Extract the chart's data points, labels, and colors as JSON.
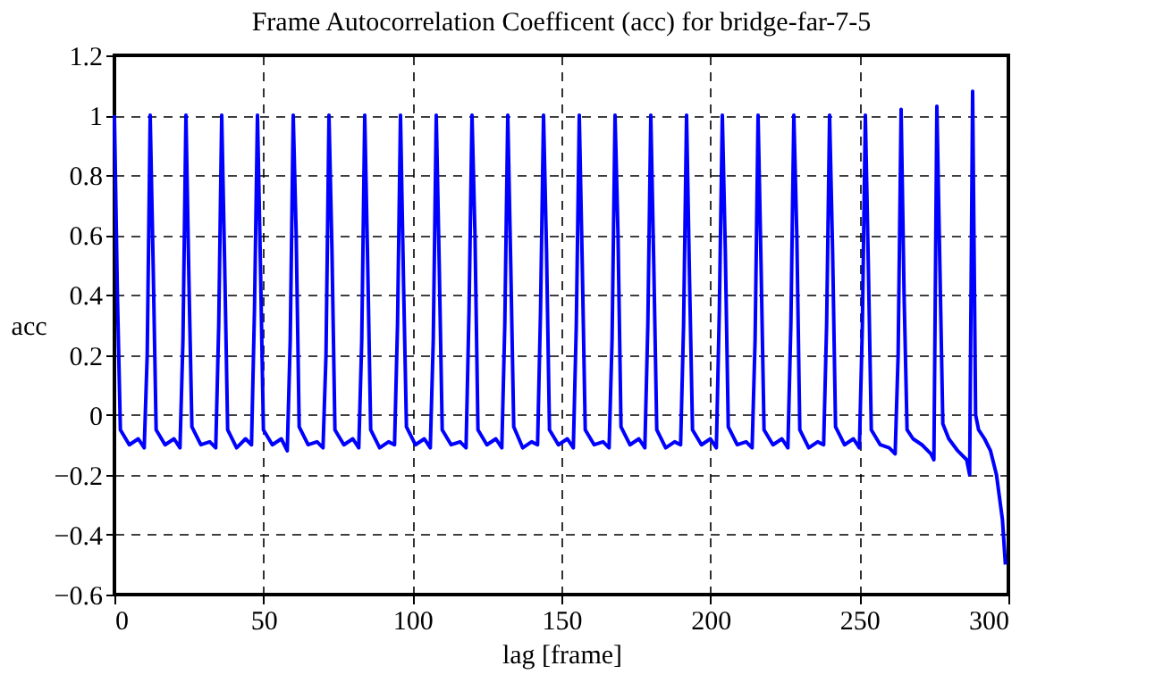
{
  "chart_data": {
    "type": "line",
    "title": "Frame Autocorrelation Coefficent (acc) for bridge-far-7-5",
    "xlabel": "lag [frame]",
    "ylabel": "acc",
    "xlim": [
      0,
      300
    ],
    "xticks": [
      0,
      50,
      100,
      150,
      200,
      250,
      300
    ],
    "ylim": [
      -0.6,
      1.2
    ],
    "yticks": [
      -0.6,
      -0.4,
      -0.2,
      0,
      0.2,
      0.4,
      0.6,
      0.8,
      1,
      1.2
    ],
    "grid": true,
    "marker": "none",
    "line_style": "solid",
    "series": [
      {
        "color": "#0000ff",
        "x": [
          0,
          1,
          2,
          5,
          8,
          10,
          11,
          12,
          13,
          14,
          17,
          20,
          22,
          23,
          24,
          25,
          26,
          29,
          32,
          34,
          35,
          36,
          37,
          38,
          41,
          44,
          46,
          47,
          48,
          49,
          50,
          53,
          56,
          58,
          59,
          60,
          61,
          62,
          65,
          68,
          70,
          71,
          72,
          73,
          74,
          77,
          80,
          82,
          83,
          84,
          85,
          86,
          89,
          92,
          94,
          95,
          96,
          97,
          98,
          101,
          104,
          106,
          107,
          108,
          109,
          110,
          113,
          116,
          118,
          119,
          120,
          121,
          122,
          125,
          128,
          130,
          131,
          132,
          133,
          134,
          137,
          140,
          142,
          143,
          144,
          145,
          146,
          149,
          152,
          154,
          155,
          156,
          157,
          158,
          161,
          164,
          166,
          167,
          168,
          169,
          170,
          173,
          176,
          178,
          179,
          180,
          181,
          182,
          185,
          188,
          190,
          191,
          192,
          193,
          194,
          197,
          200,
          202,
          203,
          204,
          205,
          206,
          209,
          212,
          214,
          215,
          216,
          217,
          218,
          221,
          224,
          226,
          227,
          228,
          229,
          230,
          233,
          236,
          238,
          239,
          240,
          241,
          242,
          245,
          248,
          250,
          251,
          252,
          253,
          254,
          257,
          260,
          262,
          263,
          264,
          265,
          266,
          268,
          271,
          274,
          275,
          276,
          277,
          278,
          280,
          283,
          286,
          287,
          288,
          289,
          290,
          292,
          294,
          296,
          298,
          299
        ],
        "values": [
          1.0,
          0.4,
          -0.05,
          -0.1,
          -0.08,
          -0.11,
          0.2,
          1.0,
          0.5,
          -0.05,
          -0.1,
          -0.08,
          -0.11,
          0.25,
          1.0,
          0.45,
          -0.04,
          -0.1,
          -0.09,
          -0.11,
          0.3,
          1.0,
          0.5,
          -0.05,
          -0.11,
          -0.08,
          -0.1,
          0.35,
          1.0,
          0.5,
          -0.05,
          -0.1,
          -0.08,
          -0.12,
          0.25,
          1.0,
          0.6,
          -0.04,
          -0.1,
          -0.09,
          -0.11,
          0.2,
          1.0,
          0.55,
          -0.05,
          -0.1,
          -0.08,
          -0.11,
          0.25,
          1.0,
          0.5,
          -0.05,
          -0.11,
          -0.09,
          -0.1,
          0.3,
          1.0,
          0.45,
          -0.04,
          -0.1,
          -0.08,
          -0.11,
          0.25,
          1.0,
          0.5,
          -0.05,
          -0.1,
          -0.09,
          -0.11,
          0.35,
          1.0,
          0.6,
          -0.05,
          -0.1,
          -0.08,
          -0.11,
          0.3,
          1.0,
          0.5,
          -0.04,
          -0.11,
          -0.09,
          -0.1,
          0.35,
          1.0,
          0.55,
          -0.05,
          -0.1,
          -0.08,
          -0.11,
          0.3,
          1.0,
          0.5,
          -0.05,
          -0.1,
          -0.09,
          -0.11,
          0.25,
          1.0,
          0.6,
          -0.04,
          -0.1,
          -0.08,
          -0.11,
          0.3,
          1.0,
          0.5,
          -0.05,
          -0.11,
          -0.09,
          -0.1,
          0.3,
          1.0,
          0.45,
          -0.05,
          -0.1,
          -0.08,
          -0.11,
          0.35,
          1.0,
          0.55,
          -0.04,
          -0.1,
          -0.09,
          -0.11,
          0.25,
          1.0,
          0.5,
          -0.05,
          -0.1,
          -0.08,
          -0.11,
          0.3,
          1.0,
          0.6,
          -0.05,
          -0.11,
          -0.09,
          -0.1,
          0.3,
          1.0,
          0.55,
          -0.04,
          -0.1,
          -0.08,
          -0.11,
          0.3,
          1.0,
          0.5,
          -0.05,
          -0.1,
          -0.11,
          -0.13,
          0.2,
          1.02,
          0.4,
          -0.05,
          -0.08,
          -0.1,
          -0.13,
          -0.15,
          1.03,
          0.5,
          -0.03,
          -0.08,
          -0.12,
          -0.15,
          -0.2,
          1.08,
          0.0,
          -0.05,
          -0.08,
          -0.12,
          -0.2,
          -0.35,
          -0.5
        ]
      }
    ]
  }
}
